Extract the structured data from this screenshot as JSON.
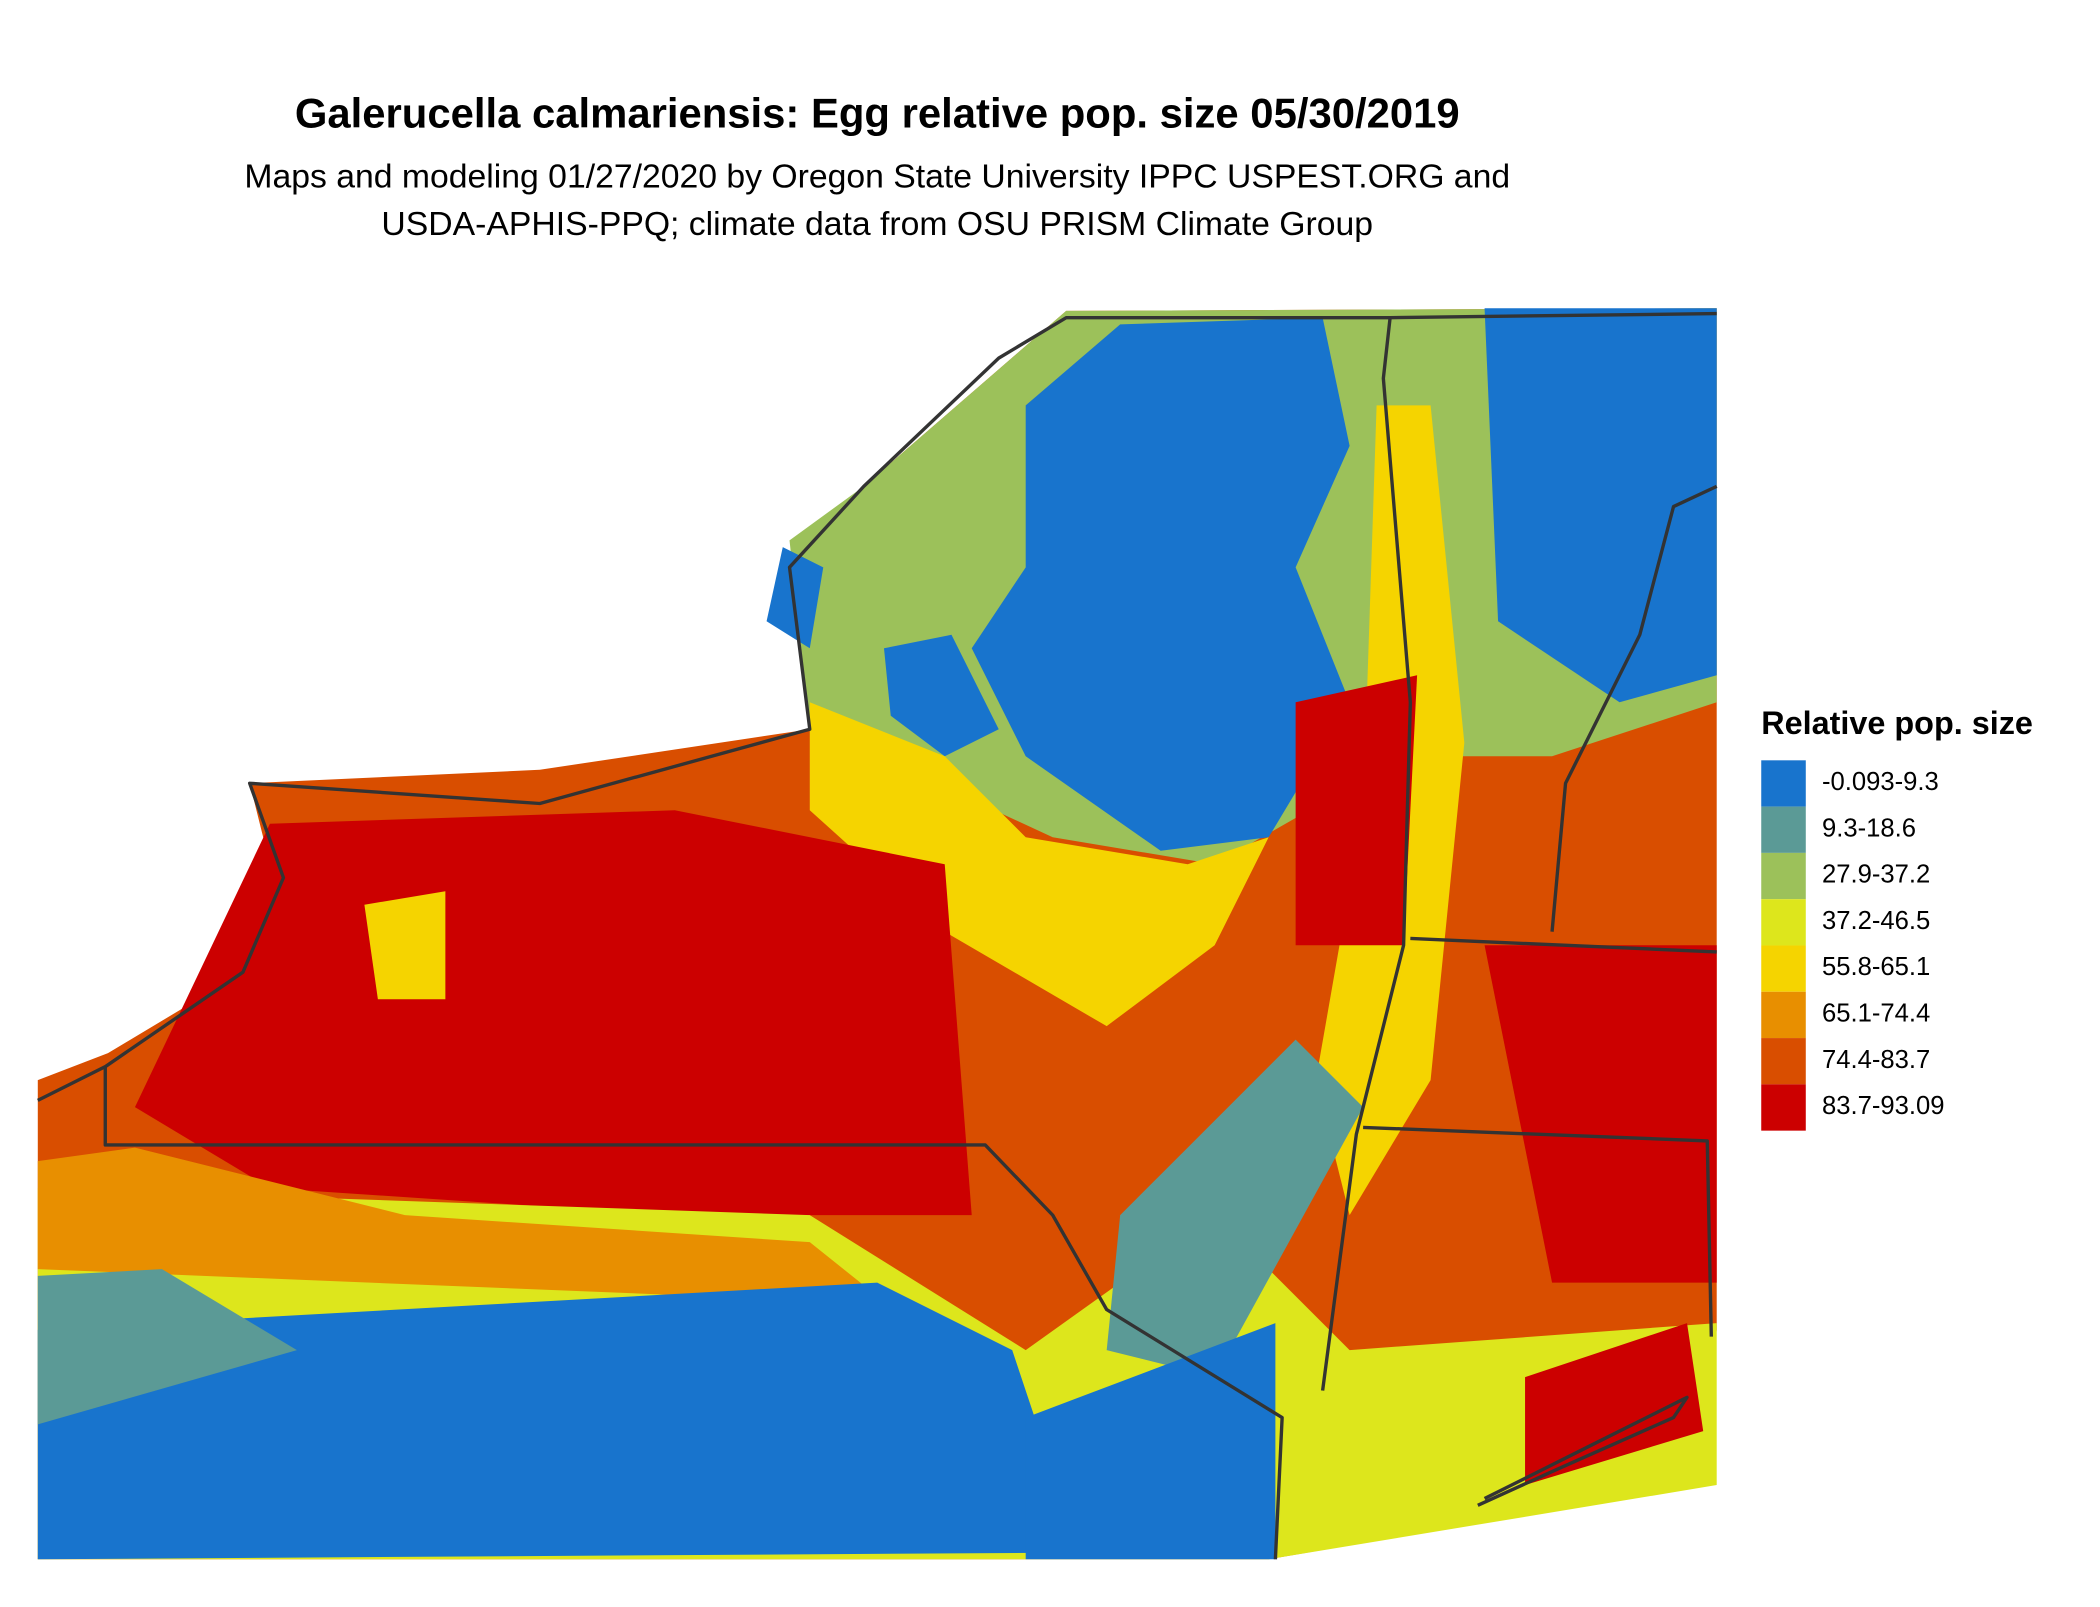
{
  "header": {
    "title": "Galerucella calmariensis: Egg relative pop. size 05/30/2019",
    "subtitle": [
      "Maps and modeling 01/27/2020 by Oregon State University IPPC USPEST.ORG and",
      "USDA-APHIS-PPQ; climate data from OSU PRISM Climate Group"
    ]
  },
  "legend": {
    "title": "Relative pop. size",
    "items": [
      {
        "label": "-0.093-9.3",
        "color": "#1874cd"
      },
      {
        "label": "9.3-18.6",
        "color": "#5b9a96"
      },
      {
        "label": "27.9-37.2",
        "color": "#9cc15a"
      },
      {
        "label": "37.2-46.5",
        "color": "#dde61c"
      },
      {
        "label": "55.8-65.1",
        "color": "#f5d400"
      },
      {
        "label": "65.1-74.4",
        "color": "#e88f00"
      },
      {
        "label": "74.4-83.7",
        "color": "#d94e00"
      },
      {
        "label": "83.7-93.09",
        "color": "#cc0000"
      }
    ]
  }
}
